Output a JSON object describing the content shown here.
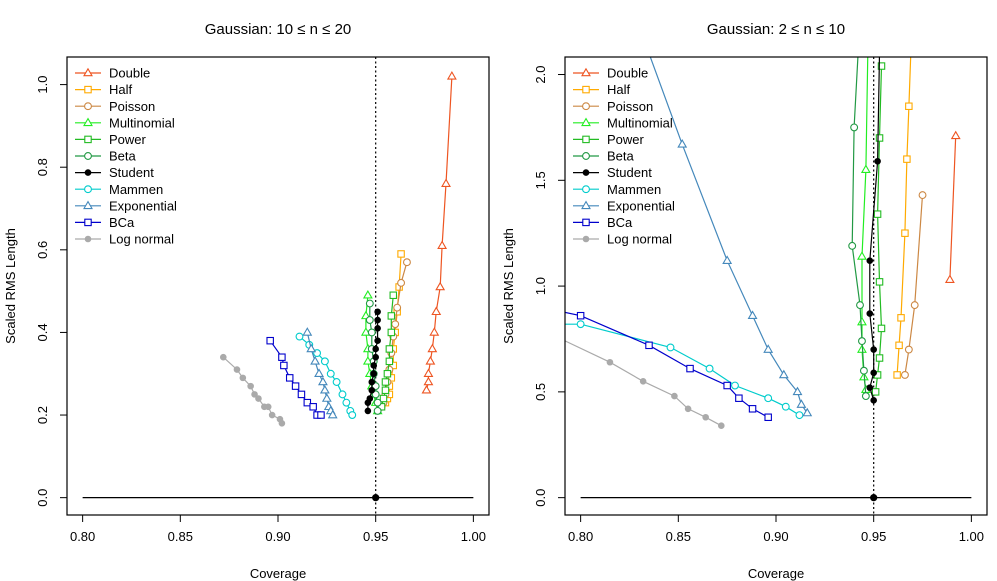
{
  "chart_data": [
    {
      "type": "line",
      "title": "Gaussian: 10 ≤ n ≤ 20",
      "xlabel": "Coverage",
      "ylabel": "Scaled RMS Length",
      "xlim": [
        0.8,
        1.0
      ],
      "ylim": [
        0.0,
        1.05
      ],
      "xticks": [
        "0.80",
        "0.85",
        "0.90",
        "0.95",
        "1.00"
      ],
      "yticks": [
        "0.0",
        "0.2",
        "0.4",
        "0.6",
        "0.8",
        "1.0"
      ],
      "vline": 0.95,
      "baseline": {
        "x": [
          0.8,
          1.0
        ],
        "y": 0.0
      },
      "marker_point": {
        "x": 0.95,
        "y": 0.0
      },
      "legend_position": "top-left",
      "series": [
        {
          "name": "Double",
          "color": "#ee5522",
          "marker": "triangle",
          "points": [
            [
              0.976,
              0.26
            ],
            [
              0.977,
              0.28
            ],
            [
              0.977,
              0.3
            ],
            [
              0.978,
              0.33
            ],
            [
              0.979,
              0.36
            ],
            [
              0.98,
              0.4
            ],
            [
              0.981,
              0.45
            ],
            [
              0.983,
              0.51
            ],
            [
              0.984,
              0.61
            ],
            [
              0.986,
              0.76
            ],
            [
              0.989,
              1.02
            ]
          ]
        },
        {
          "name": "Half",
          "color": "#ffaa00",
          "marker": "square",
          "points": [
            [
              0.955,
              0.23
            ],
            [
              0.956,
              0.24
            ],
            [
              0.957,
              0.25
            ],
            [
              0.957,
              0.27
            ],
            [
              0.958,
              0.29
            ],
            [
              0.959,
              0.32
            ],
            [
              0.959,
              0.36
            ],
            [
              0.96,
              0.4
            ],
            [
              0.961,
              0.45
            ],
            [
              0.962,
              0.51
            ],
            [
              0.963,
              0.59
            ]
          ]
        },
        {
          "name": "Poisson",
          "color": "#cc8844",
          "marker": "circle",
          "points": [
            [
              0.953,
              0.22
            ],
            [
              0.954,
              0.23
            ],
            [
              0.955,
              0.25
            ],
            [
              0.956,
              0.28
            ],
            [
              0.957,
              0.31
            ],
            [
              0.958,
              0.35
            ],
            [
              0.959,
              0.39
            ],
            [
              0.96,
              0.42
            ],
            [
              0.961,
              0.46
            ],
            [
              0.963,
              0.52
            ],
            [
              0.966,
              0.57
            ]
          ]
        },
        {
          "name": "Multinomial",
          "color": "#22ee22",
          "marker": "triangle",
          "points": [
            [
              0.951,
              0.21
            ],
            [
              0.95,
              0.23
            ],
            [
              0.949,
              0.25
            ],
            [
              0.948,
              0.27
            ],
            [
              0.947,
              0.3
            ],
            [
              0.946,
              0.33
            ],
            [
              0.946,
              0.36
            ],
            [
              0.945,
              0.4
            ],
            [
              0.945,
              0.44
            ],
            [
              0.946,
              0.49
            ]
          ]
        },
        {
          "name": "Power",
          "color": "#22bb22",
          "marker": "square",
          "points": [
            [
              0.953,
              0.22
            ],
            [
              0.954,
              0.24
            ],
            [
              0.955,
              0.26
            ],
            [
              0.955,
              0.28
            ],
            [
              0.956,
              0.3
            ],
            [
              0.957,
              0.33
            ],
            [
              0.957,
              0.36
            ],
            [
              0.958,
              0.4
            ],
            [
              0.958,
              0.44
            ],
            [
              0.959,
              0.49
            ]
          ]
        },
        {
          "name": "Beta",
          "color": "#229944",
          "marker": "circle",
          "points": [
            [
              0.951,
              0.21
            ],
            [
              0.951,
              0.23
            ],
            [
              0.95,
              0.25
            ],
            [
              0.95,
              0.27
            ],
            [
              0.949,
              0.3
            ],
            [
              0.949,
              0.33
            ],
            [
              0.948,
              0.36
            ],
            [
              0.948,
              0.4
            ],
            [
              0.947,
              0.43
            ],
            [
              0.947,
              0.47
            ]
          ]
        },
        {
          "name": "Student",
          "color": "#000000",
          "marker": "dot",
          "points": [
            [
              0.946,
              0.21
            ],
            [
              0.946,
              0.23
            ],
            [
              0.947,
              0.24
            ],
            [
              0.948,
              0.26
            ],
            [
              0.948,
              0.28
            ],
            [
              0.949,
              0.3
            ],
            [
              0.949,
              0.32
            ],
            [
              0.95,
              0.34
            ],
            [
              0.95,
              0.36
            ],
            [
              0.951,
              0.38
            ],
            [
              0.951,
              0.41
            ],
            [
              0.951,
              0.43
            ],
            [
              0.951,
              0.45
            ]
          ]
        },
        {
          "name": "Mammen",
          "color": "#00cccc",
          "marker": "circle",
          "points": [
            [
              0.911,
              0.39
            ],
            [
              0.916,
              0.37
            ],
            [
              0.92,
              0.35
            ],
            [
              0.924,
              0.33
            ],
            [
              0.927,
              0.3
            ],
            [
              0.93,
              0.28
            ],
            [
              0.933,
              0.25
            ],
            [
              0.935,
              0.23
            ],
            [
              0.937,
              0.21
            ],
            [
              0.938,
              0.2
            ]
          ]
        },
        {
          "name": "Exponential",
          "color": "#4488bb",
          "marker": "triangle",
          "points": [
            [
              0.915,
              0.4
            ],
            [
              0.917,
              0.36
            ],
            [
              0.919,
              0.33
            ],
            [
              0.921,
              0.3
            ],
            [
              0.923,
              0.28
            ],
            [
              0.924,
              0.26
            ],
            [
              0.925,
              0.24
            ],
            [
              0.926,
              0.22
            ],
            [
              0.927,
              0.21
            ],
            [
              0.928,
              0.2
            ]
          ]
        },
        {
          "name": "BCa",
          "color": "#0000cc",
          "marker": "square",
          "points": [
            [
              0.896,
              0.38
            ],
            [
              0.902,
              0.34
            ],
            [
              0.903,
              0.32
            ],
            [
              0.906,
              0.29
            ],
            [
              0.909,
              0.27
            ],
            [
              0.912,
              0.25
            ],
            [
              0.915,
              0.23
            ],
            [
              0.918,
              0.22
            ],
            [
              0.92,
              0.2
            ],
            [
              0.922,
              0.2
            ]
          ]
        },
        {
          "name": "Log normal",
          "color": "#aaaaaa",
          "marker": "dot",
          "points": [
            [
              0.872,
              0.34
            ],
            [
              0.879,
              0.31
            ],
            [
              0.882,
              0.29
            ],
            [
              0.886,
              0.27
            ],
            [
              0.888,
              0.25
            ],
            [
              0.89,
              0.24
            ],
            [
              0.893,
              0.22
            ],
            [
              0.895,
              0.22
            ],
            [
              0.897,
              0.2
            ],
            [
              0.901,
              0.19
            ],
            [
              0.902,
              0.18
            ]
          ]
        }
      ]
    },
    {
      "type": "line",
      "title": "Gaussian: 2 ≤ n ≤ 10",
      "xlabel": "Coverage",
      "ylabel": "Scaled RMS Length",
      "xlim": [
        0.8,
        1.0
      ],
      "ylim": [
        0.0,
        2.05
      ],
      "xticks": [
        "0.80",
        "0.85",
        "0.90",
        "0.95",
        "1.00"
      ],
      "yticks": [
        "0.0",
        "0.5",
        "1.0",
        "1.5",
        "2.0"
      ],
      "vline": 0.95,
      "baseline": {
        "x": [
          0.8,
          1.0
        ],
        "y": 0.0
      },
      "marker_point": {
        "x": 0.95,
        "y": 0.0
      },
      "legend_position": "top-left",
      "series": [
        {
          "name": "Double",
          "color": "#ee5522",
          "marker": "triangle",
          "points": [
            [
              0.989,
              1.03
            ],
            [
              0.992,
              1.71
            ]
          ]
        },
        {
          "name": "Half",
          "color": "#ffaa00",
          "marker": "square",
          "points": [
            [
              0.962,
              0.58
            ],
            [
              0.963,
              0.72
            ],
            [
              0.964,
              0.85
            ],
            [
              0.966,
              1.25
            ],
            [
              0.967,
              1.6
            ],
            [
              0.968,
              1.85
            ],
            [
              0.969,
              2.1
            ]
          ]
        },
        {
          "name": "Poisson",
          "color": "#cc8844",
          "marker": "circle",
          "points": [
            [
              0.966,
              0.58
            ],
            [
              0.968,
              0.7
            ],
            [
              0.971,
              0.91
            ],
            [
              0.975,
              1.43
            ]
          ]
        },
        {
          "name": "Multinomial",
          "color": "#22ee22",
          "marker": "triangle",
          "points": [
            [
              0.946,
              0.51
            ],
            [
              0.945,
              0.57
            ],
            [
              0.944,
              0.7
            ],
            [
              0.944,
              0.83
            ],
            [
              0.944,
              1.14
            ],
            [
              0.946,
              1.55
            ],
            [
              0.947,
              2.1
            ]
          ]
        },
        {
          "name": "Power",
          "color": "#22bb22",
          "marker": "square",
          "points": [
            [
              0.951,
              0.5
            ],
            [
              0.952,
              0.58
            ],
            [
              0.953,
              0.66
            ],
            [
              0.954,
              0.8
            ],
            [
              0.953,
              1.02
            ],
            [
              0.952,
              1.34
            ],
            [
              0.953,
              1.7
            ],
            [
              0.954,
              2.04
            ]
          ]
        },
        {
          "name": "Beta",
          "color": "#229944",
          "marker": "circle",
          "points": [
            [
              0.946,
              0.48
            ],
            [
              0.945,
              0.6
            ],
            [
              0.944,
              0.74
            ],
            [
              0.943,
              0.91
            ],
            [
              0.939,
              1.19
            ],
            [
              0.94,
              1.75
            ],
            [
              0.942,
              2.1
            ]
          ]
        },
        {
          "name": "Student",
          "color": "#000000",
          "marker": "dot",
          "points": [
            [
              0.95,
              0.46
            ],
            [
              0.948,
              0.52
            ],
            [
              0.95,
              0.59
            ],
            [
              0.95,
              0.7
            ],
            [
              0.948,
              0.87
            ],
            [
              0.948,
              1.12
            ],
            [
              0.952,
              1.59
            ],
            [
              0.953,
              2.1
            ]
          ]
        },
        {
          "name": "Mammen",
          "color": "#00cccc",
          "marker": "circle",
          "points": [
            [
              0.79,
              0.82
            ],
            [
              0.8,
              0.82
            ],
            [
              0.846,
              0.71
            ],
            [
              0.866,
              0.61
            ],
            [
              0.879,
              0.53
            ],
            [
              0.896,
              0.47
            ],
            [
              0.905,
              0.43
            ],
            [
              0.912,
              0.39
            ]
          ]
        },
        {
          "name": "Exponential",
          "color": "#4488bb",
          "marker": "triangle",
          "points": [
            [
              0.835,
              2.1
            ],
            [
              0.852,
              1.67
            ],
            [
              0.875,
              1.12
            ],
            [
              0.888,
              0.86
            ],
            [
              0.896,
              0.7
            ],
            [
              0.904,
              0.58
            ],
            [
              0.911,
              0.5
            ],
            [
              0.913,
              0.44
            ],
            [
              0.916,
              0.4
            ]
          ]
        },
        {
          "name": "BCa",
          "color": "#0000cc",
          "marker": "square",
          "points": [
            [
              0.79,
              0.88
            ],
            [
              0.8,
              0.86
            ],
            [
              0.835,
              0.72
            ],
            [
              0.856,
              0.61
            ],
            [
              0.875,
              0.53
            ],
            [
              0.881,
              0.47
            ],
            [
              0.888,
              0.42
            ],
            [
              0.896,
              0.38
            ]
          ]
        },
        {
          "name": "Log normal",
          "color": "#aaaaaa",
          "marker": "dot",
          "points": [
            [
              0.79,
              0.75
            ],
            [
              0.815,
              0.64
            ],
            [
              0.832,
              0.55
            ],
            [
              0.848,
              0.48
            ],
            [
              0.855,
              0.42
            ],
            [
              0.864,
              0.38
            ],
            [
              0.872,
              0.34
            ]
          ]
        }
      ]
    }
  ]
}
